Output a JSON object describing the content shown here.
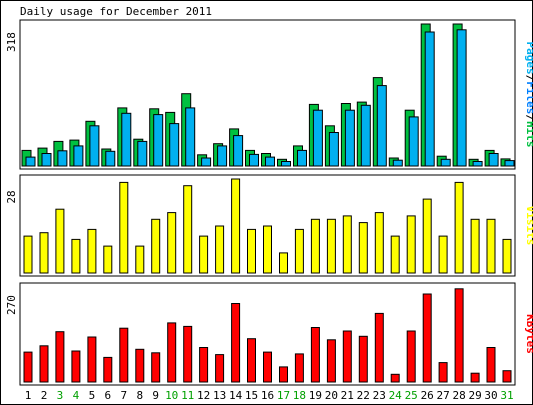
{
  "chart_data": {
    "type": "bar",
    "title": "Daily usage for December 2011",
    "categories": [
      "1",
      "2",
      "3",
      "4",
      "5",
      "6",
      "7",
      "8",
      "9",
      "10",
      "11",
      "12",
      "13",
      "14",
      "15",
      "16",
      "17",
      "18",
      "19",
      "20",
      "21",
      "22",
      "23",
      "24",
      "25",
      "26",
      "27",
      "28",
      "29",
      "30",
      "31"
    ],
    "weekend_days": [
      "3",
      "4",
      "10",
      "11",
      "17",
      "18",
      "24",
      "25",
      "31"
    ],
    "colors": {
      "hits": "#00c040",
      "files": "#00b0f0",
      "pages": "#0080ff",
      "visits": "#ffff00",
      "kbytes": "#ff0000",
      "weekday_label": "#000000",
      "weekend_label": "#00a000"
    },
    "panels": [
      {
        "name": "usage",
        "ymax_label": "318",
        "ylim": [
          0,
          318
        ],
        "labels": [
          {
            "text": "Pages",
            "color": "#00b0f0"
          },
          {
            "text": "/",
            "color": "#000000"
          },
          {
            "text": "Files",
            "color": "#0080ff"
          },
          {
            "text": "/",
            "color": "#000000"
          },
          {
            "text": "Hits",
            "color": "#00c040"
          }
        ],
        "series": [
          {
            "name": "Hits",
            "values": [
              35,
              40,
              55,
              58,
              100,
              38,
              130,
              60,
              128,
              120,
              162,
              25,
              50,
              83,
              35,
              28,
              15,
              45,
              138,
              90,
              140,
              143,
              198,
              18,
              125,
              318,
              22,
              318,
              15,
              35,
              16
            ]
          },
          {
            "name": "Files",
            "values": [
              20,
              28,
              34,
              45,
              90,
              33,
              118,
              55,
              115,
              95,
              130,
              18,
              45,
              68,
              26,
              20,
              10,
              35,
              125,
              75,
              125,
              136,
              180,
              13,
              110,
              300,
              15,
              305,
              10,
              28,
              12
            ]
          }
        ]
      },
      {
        "name": "visits",
        "ymax_label": "28",
        "ylim": [
          0,
          28
        ],
        "labels": [
          {
            "text": "Visits",
            "color": "#ffff00"
          }
        ],
        "series": [
          {
            "name": "Visits",
            "values": [
              11,
              12,
              19,
              10,
              13,
              8,
              27,
              8,
              16,
              18,
              26,
              11,
              14,
              28,
              13,
              14,
              6,
              13,
              16,
              16,
              17,
              15,
              18,
              11,
              17,
              22,
              11,
              27,
              16,
              16,
              10
            ]
          }
        ]
      },
      {
        "name": "kbytes",
        "ymax_label": "270",
        "ylim": [
          0,
          270
        ],
        "labels": [
          {
            "text": "KBytes",
            "color": "#ff0000"
          }
        ],
        "series": [
          {
            "name": "KBytes",
            "values": [
              85,
              103,
              143,
              88,
              128,
              70,
              153,
              93,
              83,
              168,
              158,
              98,
              78,
              223,
              123,
              85,
              43,
              80,
              155,
              120,
              145,
              130,
              195,
              22,
              145,
              250,
              55,
              265,
              25,
              98,
              32
            ]
          }
        ]
      }
    ]
  }
}
